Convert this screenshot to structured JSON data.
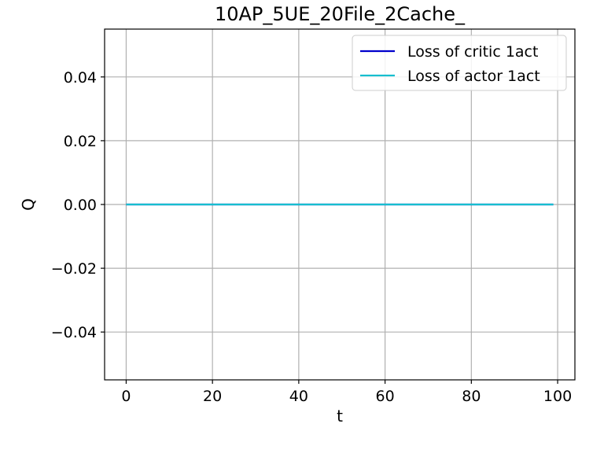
{
  "chart_data": {
    "type": "line",
    "title": "10AP_5UE_20File_2Cache_",
    "xlabel": "t",
    "ylabel": "Q",
    "xlim": [
      -5,
      104
    ],
    "ylim": [
      -0.055,
      0.055
    ],
    "xticks": [
      0,
      20,
      40,
      60,
      80,
      100
    ],
    "xtick_labels": [
      "0",
      "20",
      "40",
      "60",
      "80",
      "100"
    ],
    "yticks": [
      0.04,
      0.02,
      0.0,
      -0.02,
      -0.04
    ],
    "ytick_labels": [
      "0.04",
      "0.02",
      "0.00",
      "−0.02",
      "−0.04"
    ],
    "grid": true,
    "legend_position": "top-right",
    "x": [
      0,
      99
    ],
    "series": [
      {
        "name": "Loss of critic 1act",
        "color": "#0000cc",
        "values": [
          0,
          0
        ]
      },
      {
        "name": "Loss of actor 1act",
        "color": "#17becf",
        "values": [
          0,
          0
        ]
      }
    ]
  }
}
